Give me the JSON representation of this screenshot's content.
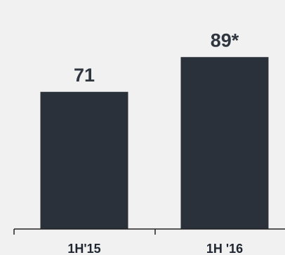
{
  "chart_data": {
    "type": "bar",
    "categories": [
      "1H'15",
      "1H '16"
    ],
    "values": [
      71,
      89
    ],
    "data_labels": [
      "71",
      "89*"
    ],
    "title": "",
    "xlabel": "",
    "ylabel": "",
    "ylim": [
      0,
      100
    ],
    "grid": false,
    "legend": "none",
    "colors": {
      "bar": "#2a313b",
      "background": "#f1f1f1",
      "text": "#2f3640"
    }
  }
}
